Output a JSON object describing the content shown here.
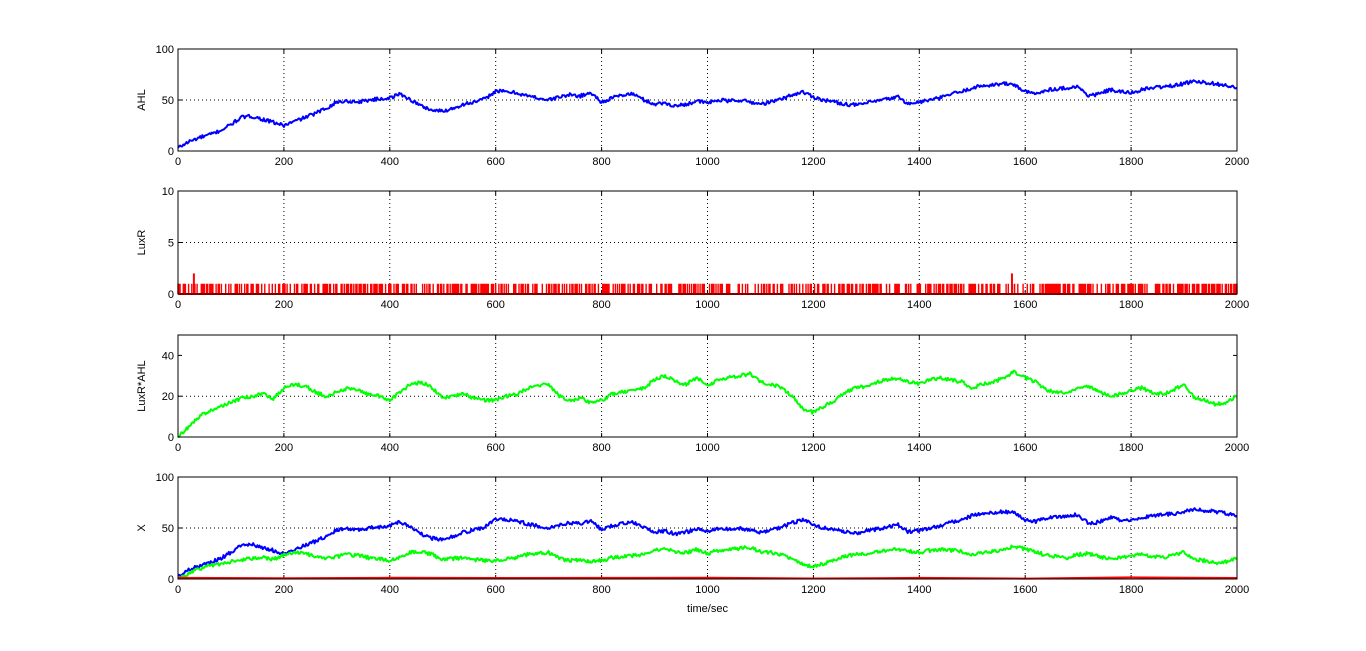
{
  "chart_data": [
    {
      "type": "line",
      "ylabel": "AHL",
      "xlabel": "",
      "xlim": [
        0,
        2000
      ],
      "ylim": [
        0,
        100
      ],
      "xticks": [
        "0",
        "200",
        "400",
        "600",
        "800",
        "1000",
        "1200",
        "1400",
        "1600",
        "1800",
        "2000"
      ],
      "yticks": [
        "0",
        "50",
        "100"
      ],
      "grid": true,
      "series": [
        {
          "color": "#0000ff",
          "x": [
            0,
            20,
            40,
            60,
            80,
            100,
            120,
            140,
            160,
            180,
            200,
            220,
            240,
            260,
            280,
            300,
            320,
            340,
            360,
            380,
            400,
            420,
            440,
            460,
            480,
            500,
            520,
            540,
            560,
            580,
            600,
            620,
            640,
            660,
            680,
            700,
            720,
            740,
            760,
            780,
            800,
            820,
            840,
            860,
            880,
            900,
            920,
            940,
            960,
            980,
            1000,
            1020,
            1040,
            1060,
            1080,
            1100,
            1120,
            1140,
            1160,
            1180,
            1200,
            1220,
            1240,
            1260,
            1280,
            1300,
            1320,
            1340,
            1360,
            1380,
            1400,
            1420,
            1440,
            1460,
            1480,
            1500,
            1520,
            1540,
            1560,
            1580,
            1600,
            1620,
            1640,
            1660,
            1680,
            1700,
            1720,
            1740,
            1760,
            1780,
            1800,
            1820,
            1840,
            1860,
            1880,
            1900,
            1920,
            1940,
            1960,
            1980,
            2000
          ],
          "y": [
            3,
            9,
            13,
            16,
            20,
            26,
            33,
            34,
            31,
            28,
            25,
            29,
            33,
            37,
            42,
            48,
            49,
            48,
            50,
            51,
            52,
            56,
            50,
            44,
            40,
            39,
            42,
            46,
            48,
            51,
            59,
            58,
            57,
            54,
            52,
            50,
            53,
            55,
            54,
            57,
            48,
            52,
            55,
            56,
            50,
            46,
            47,
            44,
            46,
            49,
            47,
            50,
            49,
            50,
            48,
            46,
            48,
            51,
            55,
            58,
            53,
            50,
            48,
            46,
            45,
            47,
            49,
            51,
            53,
            46,
            48,
            50,
            52,
            56,
            58,
            62,
            64,
            65,
            66,
            65,
            58,
            56,
            60,
            61,
            62,
            63,
            54,
            56,
            60,
            58,
            57,
            60,
            62,
            63,
            64,
            66,
            69,
            67,
            66,
            64,
            62
          ]
        }
      ]
    },
    {
      "type": "bar",
      "ylabel": "LuxR",
      "xlabel": "",
      "xlim": [
        0,
        2000
      ],
      "ylim": [
        0,
        10
      ],
      "xticks": [
        "0",
        "200",
        "400",
        "600",
        "800",
        "1000",
        "1200",
        "1400",
        "1600",
        "1800",
        "2000"
      ],
      "yticks": [
        "0",
        "5",
        "10"
      ],
      "grid": true,
      "series": [
        {
          "color": "#ff0000",
          "description_levels": "values are 0 or 1 with two spikes of 2",
          "x": [
            30,
            1575
          ],
          "y": [
            2,
            2
          ],
          "base_level": 1
        }
      ]
    },
    {
      "type": "line",
      "ylabel": "LuxR*AHL",
      "xlabel": "",
      "xlim": [
        0,
        2000
      ],
      "ylim": [
        0,
        50
      ],
      "xticks": [
        "0",
        "200",
        "400",
        "600",
        "800",
        "1000",
        "1200",
        "1400",
        "1600",
        "1800",
        "2000"
      ],
      "yticks": [
        "0",
        "20",
        "40"
      ],
      "grid": true,
      "series": [
        {
          "color": "#00ff00",
          "x": [
            0,
            20,
            40,
            60,
            80,
            100,
            120,
            140,
            160,
            180,
            200,
            220,
            240,
            260,
            280,
            300,
            320,
            340,
            360,
            380,
            400,
            420,
            440,
            460,
            480,
            500,
            520,
            540,
            560,
            580,
            600,
            620,
            640,
            660,
            680,
            700,
            720,
            740,
            760,
            780,
            800,
            820,
            840,
            860,
            880,
            900,
            920,
            940,
            960,
            980,
            1000,
            1020,
            1040,
            1060,
            1080,
            1100,
            1120,
            1140,
            1160,
            1180,
            1200,
            1220,
            1240,
            1260,
            1280,
            1300,
            1320,
            1340,
            1360,
            1380,
            1400,
            1420,
            1440,
            1460,
            1480,
            1500,
            1520,
            1540,
            1560,
            1580,
            1600,
            1620,
            1640,
            1660,
            1680,
            1700,
            1720,
            1740,
            1760,
            1780,
            1800,
            1820,
            1840,
            1860,
            1880,
            1900,
            1920,
            1940,
            1960,
            1980,
            2000
          ],
          "y": [
            0,
            5,
            10,
            13,
            15,
            17,
            19,
            20,
            21,
            19,
            24,
            26,
            25,
            22,
            20,
            22,
            24,
            23,
            21,
            20,
            18,
            22,
            26,
            27,
            24,
            19,
            20,
            21,
            19,
            18,
            18,
            20,
            21,
            24,
            25,
            26,
            20,
            18,
            19,
            17,
            18,
            21,
            22,
            23,
            24,
            28,
            30,
            27,
            26,
            29,
            25,
            28,
            29,
            30,
            31,
            27,
            26,
            24,
            20,
            14,
            12,
            15,
            18,
            22,
            24,
            25,
            27,
            28,
            29,
            27,
            26,
            28,
            29,
            28,
            27,
            24,
            26,
            27,
            29,
            32,
            29,
            27,
            23,
            22,
            21,
            24,
            25,
            22,
            20,
            21,
            23,
            24,
            22,
            21,
            23,
            26,
            19,
            18,
            16,
            17,
            20
          ]
        }
      ]
    },
    {
      "type": "line",
      "ylabel": "X",
      "xlabel": "time/sec",
      "xlim": [
        0,
        2000
      ],
      "ylim": [
        0,
        100
      ],
      "xticks": [
        "0",
        "200",
        "400",
        "600",
        "800",
        "1000",
        "1200",
        "1400",
        "1600",
        "1800",
        "2000"
      ],
      "yticks": [
        "0",
        "50",
        "100"
      ],
      "grid": true,
      "series": [
        {
          "color": "#0000ff",
          "x": [
            0,
            20,
            40,
            60,
            80,
            100,
            120,
            140,
            160,
            180,
            200,
            220,
            240,
            260,
            280,
            300,
            320,
            340,
            360,
            380,
            400,
            420,
            440,
            460,
            480,
            500,
            520,
            540,
            560,
            580,
            600,
            620,
            640,
            660,
            680,
            700,
            720,
            740,
            760,
            780,
            800,
            820,
            840,
            860,
            880,
            900,
            920,
            940,
            960,
            980,
            1000,
            1020,
            1040,
            1060,
            1080,
            1100,
            1120,
            1140,
            1160,
            1180,
            1200,
            1220,
            1240,
            1260,
            1280,
            1300,
            1320,
            1340,
            1360,
            1380,
            1400,
            1420,
            1440,
            1460,
            1480,
            1500,
            1520,
            1540,
            1560,
            1580,
            1600,
            1620,
            1640,
            1660,
            1680,
            1700,
            1720,
            1740,
            1760,
            1780,
            1800,
            1820,
            1840,
            1860,
            1880,
            1900,
            1920,
            1940,
            1960,
            1980,
            2000
          ],
          "y": [
            3,
            9,
            13,
            16,
            20,
            26,
            33,
            34,
            31,
            28,
            25,
            29,
            33,
            37,
            42,
            48,
            49,
            48,
            50,
            51,
            52,
            56,
            50,
            44,
            40,
            39,
            42,
            46,
            48,
            51,
            59,
            58,
            57,
            54,
            52,
            50,
            53,
            55,
            54,
            57,
            48,
            52,
            55,
            56,
            50,
            46,
            47,
            44,
            46,
            49,
            47,
            50,
            49,
            50,
            48,
            46,
            48,
            51,
            55,
            58,
            53,
            50,
            48,
            46,
            45,
            47,
            49,
            51,
            53,
            46,
            48,
            50,
            52,
            56,
            58,
            62,
            64,
            65,
            66,
            65,
            58,
            56,
            60,
            61,
            62,
            63,
            54,
            56,
            60,
            58,
            57,
            60,
            62,
            63,
            64,
            66,
            69,
            67,
            66,
            64,
            62
          ]
        },
        {
          "color": "#00ff00",
          "x": [
            0,
            20,
            40,
            60,
            80,
            100,
            120,
            140,
            160,
            180,
            200,
            220,
            240,
            260,
            280,
            300,
            320,
            340,
            360,
            380,
            400,
            420,
            440,
            460,
            480,
            500,
            520,
            540,
            560,
            580,
            600,
            620,
            640,
            660,
            680,
            700,
            720,
            740,
            760,
            780,
            800,
            820,
            840,
            860,
            880,
            900,
            920,
            940,
            960,
            980,
            1000,
            1020,
            1040,
            1060,
            1080,
            1100,
            1120,
            1140,
            1160,
            1180,
            1200,
            1220,
            1240,
            1260,
            1280,
            1300,
            1320,
            1340,
            1360,
            1380,
            1400,
            1420,
            1440,
            1460,
            1480,
            1500,
            1520,
            1540,
            1560,
            1580,
            1600,
            1620,
            1640,
            1660,
            1680,
            1700,
            1720,
            1740,
            1760,
            1780,
            1800,
            1820,
            1840,
            1860,
            1880,
            1900,
            1920,
            1940,
            1960,
            1980,
            2000
          ],
          "y": [
            0,
            5,
            10,
            13,
            15,
            17,
            19,
            20,
            21,
            19,
            24,
            26,
            25,
            22,
            20,
            22,
            24,
            23,
            21,
            20,
            18,
            22,
            26,
            27,
            24,
            19,
            20,
            21,
            19,
            18,
            18,
            20,
            21,
            24,
            25,
            26,
            20,
            18,
            19,
            17,
            18,
            21,
            22,
            23,
            24,
            28,
            30,
            27,
            26,
            29,
            25,
            28,
            29,
            30,
            31,
            27,
            26,
            24,
            20,
            14,
            12,
            15,
            18,
            22,
            24,
            25,
            27,
            28,
            29,
            27,
            26,
            28,
            29,
            28,
            27,
            24,
            26,
            27,
            29,
            32,
            29,
            27,
            23,
            22,
            21,
            24,
            25,
            22,
            20,
            21,
            23,
            24,
            22,
            21,
            23,
            26,
            19,
            18,
            16,
            17,
            20
          ]
        },
        {
          "color": "#ff0000",
          "x": [
            0,
            2000
          ],
          "y": [
            1,
            1
          ]
        }
      ]
    }
  ]
}
